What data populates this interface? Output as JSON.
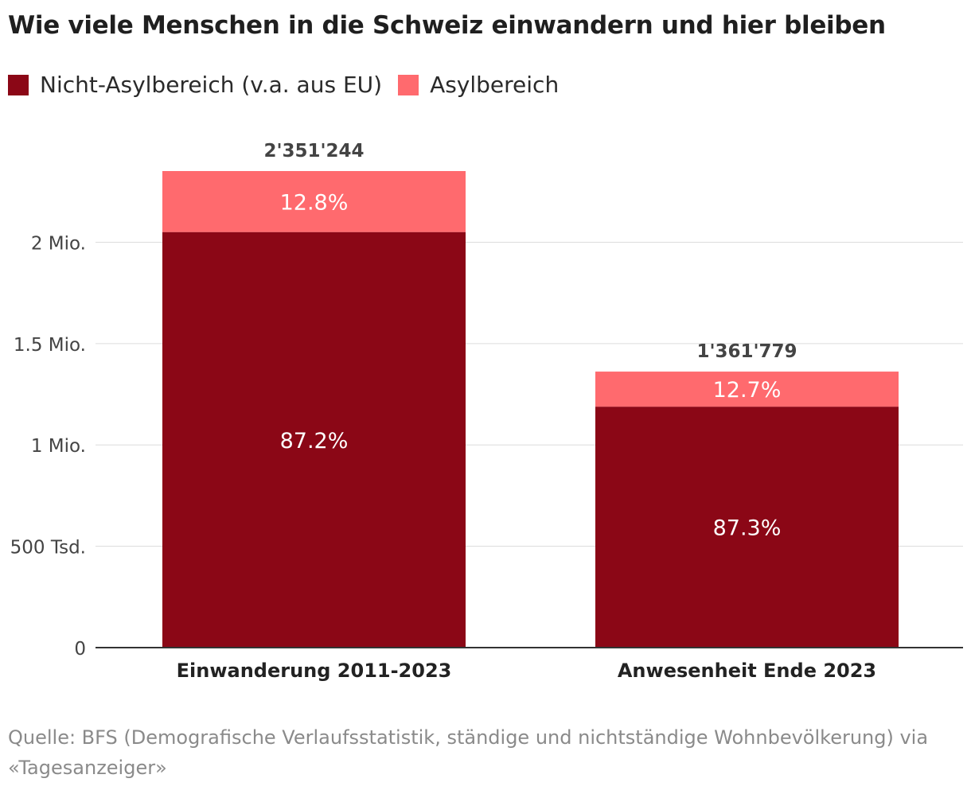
{
  "title": "Wie viele Menschen in die Schweiz einwandern und hier bleiben",
  "legend": [
    {
      "label": "Nicht-Asylbereich (v.a. aus EU)",
      "color": "#8b0716"
    },
    {
      "label": "Asylbereich",
      "color": "#ff6a6e"
    }
  ],
  "source_line1": "Quelle: BFS (Demografische Verlaufsstatistik, ständige und nichtständige Wohnbevölkerung) via",
  "source_line2": "«Tagesanzeiger»",
  "chart_data": {
    "type": "bar",
    "stacked": true,
    "title": "Wie viele Menschen in die Schweiz einwandern und hier bleiben",
    "categories": [
      "Einwanderung 2011-2023",
      "Anwesenheit Ende 2023"
    ],
    "totals": [
      2351244,
      1361779
    ],
    "total_labels": [
      "2'351'244",
      "1'361'779"
    ],
    "series": [
      {
        "name": "Nicht-Asylbereich (v.a. aus EU)",
        "color": "#8b0716",
        "values": [
          2050285,
          1188833
        ],
        "labels": [
          "87.2%",
          "87.3%"
        ]
      },
      {
        "name": "Asylbereich",
        "color": "#ff6a6e",
        "values": [
          300959,
          172946
        ],
        "labels": [
          "12.8%",
          "12.7%"
        ]
      }
    ],
    "ylim": [
      0,
      2351244
    ],
    "yticks": [
      0,
      500000,
      1000000,
      1500000,
      2000000
    ],
    "ytick_labels": [
      "0",
      "500 Tsd.",
      "1 Mio.",
      "1.5 Mio.",
      "2 Mio."
    ],
    "xlabel": "",
    "ylabel": "",
    "grid": true,
    "legend_position": "top-left"
  }
}
